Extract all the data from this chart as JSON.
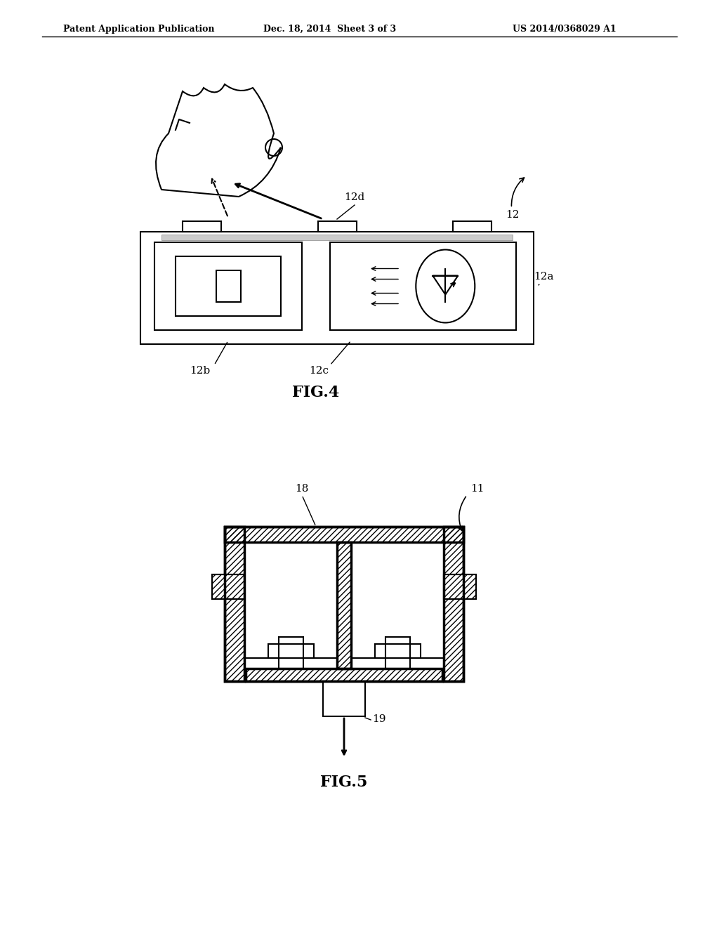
{
  "bg_color": "#ffffff",
  "line_color": "#000000",
  "gray_color": "#aaaaaa",
  "hatch_color": "#555555",
  "header_text": "Patent Application Publication",
  "header_date": "Dec. 18, 2014  Sheet 3 of 3",
  "header_patent": "US 2014/0368029 A1",
  "fig4_label": "FIG.4",
  "fig5_label": "FIG.5",
  "label_12": "12",
  "label_12a": "12a",
  "label_12b": "12b",
  "label_12c": "12c",
  "label_12d": "12d",
  "label_18": "18",
  "label_11": "11",
  "label_19": "19"
}
